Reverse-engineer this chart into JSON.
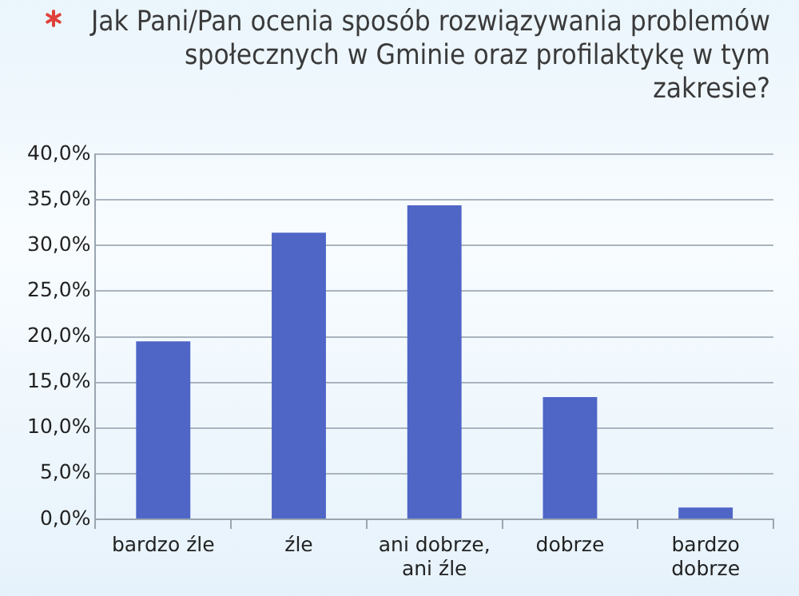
{
  "chart_data": {
    "type": "bar",
    "title": "Jak Pani/Pan ocenia sposób rozwiązywania problemów społecznych w Gminie oraz profilaktykę w tym zakresie?",
    "categories": [
      "bardzo źle",
      "źle",
      "ani dobrze, ani źle",
      "dobrze",
      "bardzo dobrze"
    ],
    "values": [
      19.5,
      31.4,
      34.4,
      13.4,
      1.3
    ],
    "color": "#4f66c7",
    "ylim": [
      0,
      40
    ],
    "yticks": [
      {
        "value": 0,
        "label": "0,0%"
      },
      {
        "value": 5,
        "label": "5,0%"
      },
      {
        "value": 10,
        "label": "10,0%"
      },
      {
        "value": 15,
        "label": "15,0%"
      },
      {
        "value": 20,
        "label": "20,0%"
      },
      {
        "value": 25,
        "label": "25,0%"
      },
      {
        "value": 30,
        "label": "30,0%"
      },
      {
        "value": 35,
        "label": "35,0%"
      },
      {
        "value": 40,
        "label": "40,0%"
      }
    ],
    "grid": "y",
    "legend": false
  }
}
